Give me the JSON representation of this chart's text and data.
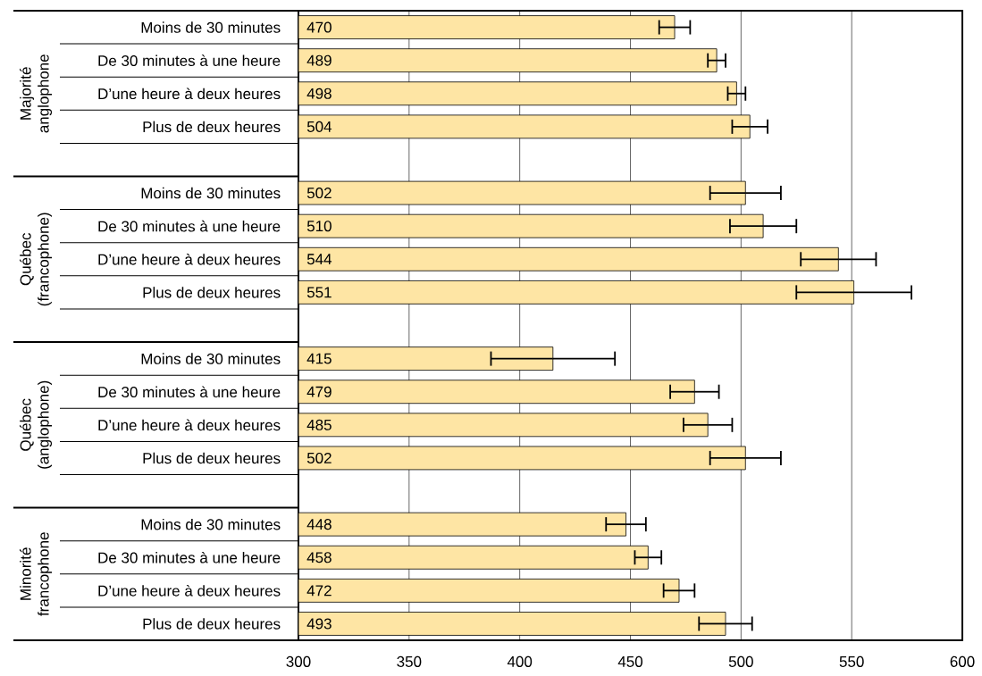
{
  "chart_data": {
    "type": "bar",
    "orientation": "horizontal",
    "categories": [
      "Moins de 30 minutes",
      "De 30 minutes à une heure",
      "D’une heure à deux heures",
      "Plus de deux heures",
      null,
      "Moins de 30 minutes",
      "De 30 minutes à une heure",
      "D’une heure à deux heures",
      "Plus de deux heures",
      null,
      "Moins de 30 minutes",
      "De 30 minutes à une heure",
      "D’une heure à deux heures",
      "Plus de deux heures",
      null,
      "Moins de 30 minutes",
      "De 30 minutes à une heure",
      "D’une heure à deux heures",
      "Plus de deux heures"
    ],
    "values": [
      470,
      489,
      498,
      504,
      null,
      502,
      510,
      544,
      551,
      null,
      415,
      479,
      485,
      502,
      null,
      448,
      458,
      472,
      493
    ],
    "errors": [
      7,
      4,
      4,
      8,
      null,
      16,
      15,
      17,
      26,
      null,
      28,
      11,
      11,
      16,
      null,
      9,
      6,
      7,
      12
    ],
    "color": "#fee5a4",
    "xlim": [
      300,
      600
    ],
    "xticks": [
      300,
      350,
      400,
      450,
      500,
      550,
      600
    ],
    "grid": "x",
    "data_labels": true,
    "annotations": [
      "Majorité anglophone",
      "Québec (francophone)",
      "Québec (anglophone)",
      "Minorité francophone"
    ]
  }
}
